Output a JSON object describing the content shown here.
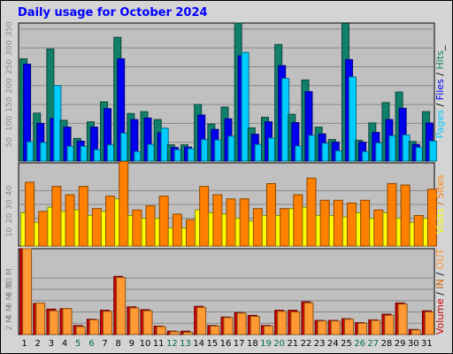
{
  "title": "Daily usage for October 2024",
  "colors": {
    "hits": "#11806a",
    "files": "#0000ee",
    "pages": "#00ccff",
    "visits": "#ffff00",
    "sites": "#ff8000",
    "kbin": "#cc0000",
    "kbout": "#ff9933",
    "weekday_label": "#000000",
    "weekend_label": "#006a4e"
  },
  "chart_data": [
    {
      "type": "bar",
      "panel": "top",
      "side_label": [
        {
          "text": "Pages",
          "color": "#00ccff"
        },
        {
          "text": " / ",
          "color": "#000000"
        },
        {
          "text": "Files",
          "color": "#0000ee"
        },
        {
          "text": " / ",
          "color": "#000000"
        },
        {
          "text": "Hits",
          "color": "#11806a"
        },
        {
          "text": "_",
          "color": "#000000"
        }
      ],
      "yticks": [
        50,
        100,
        150,
        200,
        250,
        300,
        350
      ],
      "ylim": [
        0,
        366
      ],
      "categories": [
        "1",
        "2",
        "3",
        "4",
        "5",
        "6",
        "7",
        "8",
        "9",
        "10",
        "11",
        "12",
        "13",
        "14",
        "15",
        "16",
        "17",
        "18",
        "19",
        "20",
        "21",
        "22",
        "23",
        "24",
        "25",
        "26",
        "27",
        "28",
        "29",
        "30",
        "31"
      ],
      "series": [
        {
          "key": "hits",
          "values": [
            271,
            127,
            297,
            108,
            60,
            104,
            157,
            328,
            126,
            131,
            110,
            43,
            43,
            150,
            98,
            143,
            366,
            88,
            116,
            309,
            124,
            215,
            90,
            57,
            365,
            55,
            101,
            155,
            183,
            52,
            131
          ]
        },
        {
          "key": "files",
          "values": [
            257,
            100,
            113,
            90,
            53,
            90,
            139,
            271,
            110,
            114,
            75,
            36,
            37,
            122,
            84,
            112,
            279,
            71,
            104,
            253,
            102,
            184,
            72,
            50,
            269,
            50,
            76,
            110,
            140,
            44,
            101
          ]
        },
        {
          "key": "pages",
          "values": [
            51,
            49,
            200,
            39,
            39,
            30,
            43,
            74,
            25,
            44,
            87,
            30,
            33,
            57,
            56,
            66,
            288,
            44,
            61,
            219,
            40,
            68,
            47,
            27,
            223,
            25,
            48,
            67,
            69,
            36,
            53
          ]
        }
      ]
    },
    {
      "type": "bar",
      "panel": "middle",
      "side_label": [
        {
          "text": "Visits",
          "color": "#ffff00"
        },
        {
          "text": " / ",
          "color": "#cc6600"
        },
        {
          "text": "Sites",
          "color": "#ff8000"
        }
      ],
      "yticks": [
        10,
        20,
        30,
        40
      ],
      "ylim": [
        0,
        60
      ],
      "categories": [
        "1",
        "2",
        "3",
        "4",
        "5",
        "6",
        "7",
        "8",
        "9",
        "10",
        "11",
        "12",
        "13",
        "14",
        "15",
        "16",
        "17",
        "18",
        "19",
        "20",
        "21",
        "22",
        "23",
        "24",
        "25",
        "26",
        "27",
        "28",
        "29",
        "30",
        "31"
      ],
      "series": [
        {
          "key": "visits",
          "values": [
            24,
            17,
            28,
            25,
            26,
            22,
            25,
            34,
            22,
            20,
            20,
            13,
            13,
            26,
            24,
            23,
            20,
            18,
            22,
            22,
            27,
            28,
            22,
            22,
            21,
            24,
            20,
            24,
            20,
            17,
            20
          ]
        },
        {
          "key": "sites",
          "values": [
            46,
            25,
            43,
            37,
            43,
            27,
            36,
            61,
            26,
            29,
            36,
            23,
            19,
            43,
            37,
            34,
            34,
            27,
            45,
            27,
            37,
            49,
            33,
            33,
            31,
            33,
            26,
            45,
            44,
            22,
            41
          ]
        }
      ]
    },
    {
      "type": "bar",
      "panel": "bottom",
      "side_label": [
        {
          "text": "Volume",
          "color": "#cc0000"
        },
        {
          "text": " / ",
          "color": "#000000"
        },
        {
          "text": "IN",
          "color": "#cc6600"
        },
        {
          "text": " / ",
          "color": "#000000"
        },
        {
          "text": "OUT",
          "color": "#ff9933"
        }
      ],
      "yticks": [
        "2 M",
        "4 M",
        "6 M",
        "8 M",
        "10 M"
      ],
      "ytick_values": [
        2,
        4,
        6,
        8,
        10
      ],
      "ylim": [
        0,
        15.2
      ],
      "categories": [
        "1",
        "2",
        "3",
        "4",
        "5",
        "6",
        "7",
        "8",
        "9",
        "10",
        "11",
        "12",
        "13",
        "14",
        "15",
        "16",
        "17",
        "18",
        "19",
        "20",
        "21",
        "22",
        "23",
        "24",
        "25",
        "26",
        "27",
        "28",
        "29",
        "30",
        "31"
      ],
      "series": [
        {
          "key": "kbin",
          "values": [
            15.2,
            5.5,
            4.5,
            4.6,
            1.6,
            2.7,
            4.3,
            10.3,
            4.9,
            4.4,
            1.5,
            0.6,
            0.6,
            5.0,
            1.6,
            3.1,
            3.9,
            3.4,
            1.6,
            4.3,
            4.3,
            5.8,
            2.5,
            2.5,
            2.8,
            2.1,
            2.6,
            3.6,
            5.6,
            0.9,
            4.2
          ]
        },
        {
          "key": "kbout",
          "values": [
            15.2,
            5.6,
            4.2,
            4.6,
            1.4,
            2.6,
            4.1,
            10.1,
            4.7,
            4.2,
            1.4,
            0.5,
            0.4,
            4.8,
            1.5,
            3.0,
            3.8,
            3.2,
            1.5,
            4.1,
            4.0,
            5.6,
            2.4,
            2.4,
            2.7,
            2.0,
            2.5,
            3.4,
            5.4,
            0.8,
            4.0
          ]
        }
      ]
    }
  ],
  "weekend_days": [
    5,
    6,
    12,
    13,
    19,
    20,
    26,
    27
  ]
}
